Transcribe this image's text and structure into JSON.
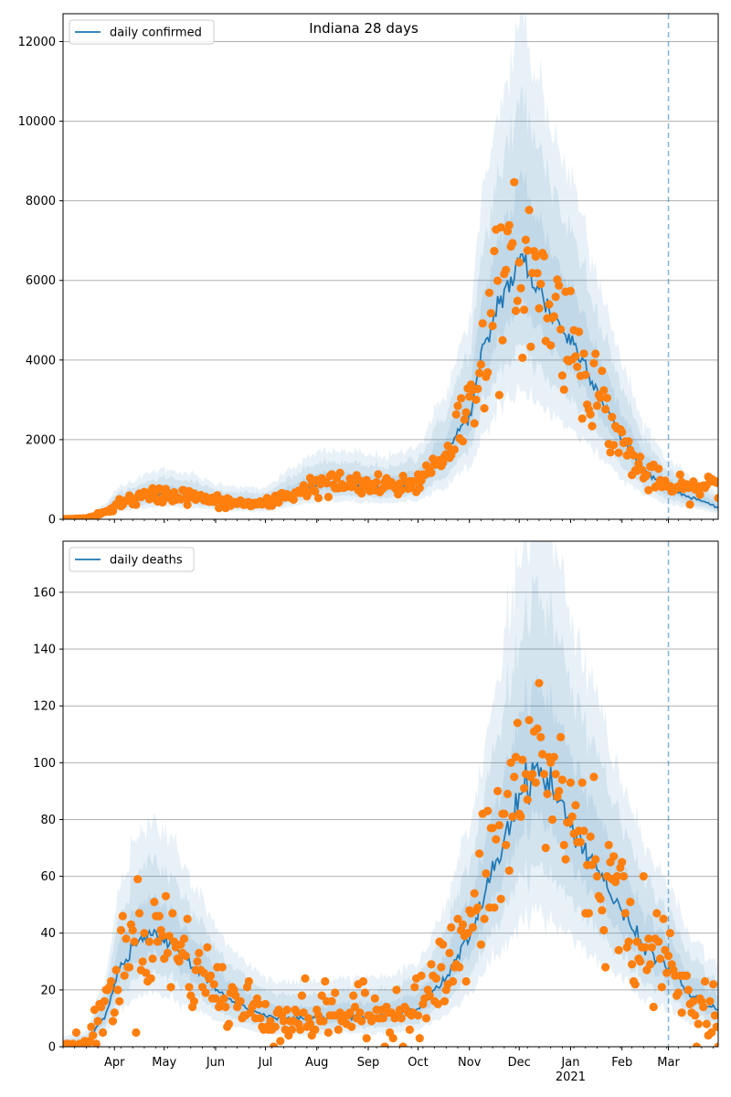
{
  "figure": {
    "title": "Indiana 28 days"
  },
  "colors": {
    "line": "#1f77b4",
    "points": "#ff7f0e",
    "band": "#1f77b4",
    "grid": "#b0b0b0",
    "vline": "#1f77b4"
  },
  "chart_data": [
    {
      "type": "line",
      "title": "Indiana 28 days",
      "series_name": "daily confirmed",
      "legend": "top-left",
      "grid": true,
      "x_range": [
        "2020-03-01",
        "2021-03-31"
      ],
      "ylim": [
        0,
        12700
      ],
      "y_ticks": [
        0,
        2000,
        4000,
        6000,
        8000,
        10000,
        12000
      ],
      "forecast_start": "2021-03-01",
      "median_keypoints": [
        [
          "2020-03-01",
          0
        ],
        [
          "2020-03-15",
          20
        ],
        [
          "2020-03-25",
          150
        ],
        [
          "2020-04-05",
          420
        ],
        [
          "2020-04-20",
          560
        ],
        [
          "2020-05-01",
          640
        ],
        [
          "2020-05-15",
          580
        ],
        [
          "2020-06-01",
          450
        ],
        [
          "2020-06-15",
          400
        ],
        [
          "2020-07-01",
          380
        ],
        [
          "2020-07-15",
          620
        ],
        [
          "2020-08-01",
          860
        ],
        [
          "2020-08-15",
          880
        ],
        [
          "2020-09-01",
          820
        ],
        [
          "2020-09-15",
          800
        ],
        [
          "2020-10-01",
          950
        ],
        [
          "2020-10-15",
          1500
        ],
        [
          "2020-11-01",
          2600
        ],
        [
          "2020-11-10",
          4300
        ],
        [
          "2020-11-20",
          5600
        ],
        [
          "2020-11-28",
          6100
        ],
        [
          "2020-12-03",
          6550
        ],
        [
          "2020-12-10",
          6000
        ],
        [
          "2020-12-20",
          5200
        ],
        [
          "2021-01-01",
          4500
        ],
        [
          "2021-01-10",
          3900
        ],
        [
          "2021-01-20",
          3000
        ],
        [
          "2021-02-01",
          2000
        ],
        [
          "2021-02-15",
          1200
        ],
        [
          "2021-03-01",
          750
        ],
        [
          "2021-03-15",
          550
        ],
        [
          "2021-03-31",
          300
        ]
      ],
      "observed_keypoints": [
        [
          "2020-03-01",
          0
        ],
        [
          "2020-03-15",
          20
        ],
        [
          "2020-03-25",
          150
        ],
        [
          "2020-04-05",
          420
        ],
        [
          "2020-04-20",
          560
        ],
        [
          "2020-05-01",
          640
        ],
        [
          "2020-05-15",
          580
        ],
        [
          "2020-06-01",
          450
        ],
        [
          "2020-06-15",
          400
        ],
        [
          "2020-07-01",
          380
        ],
        [
          "2020-07-15",
          620
        ],
        [
          "2020-08-01",
          860
        ],
        [
          "2020-08-15",
          880
        ],
        [
          "2020-09-01",
          820
        ],
        [
          "2020-09-15",
          800
        ],
        [
          "2020-10-01",
          950
        ],
        [
          "2020-10-15",
          1550
        ],
        [
          "2020-11-01",
          2800
        ],
        [
          "2020-11-10",
          4500
        ],
        [
          "2020-11-20",
          5700
        ],
        [
          "2020-11-28",
          6200
        ],
        [
          "2020-12-03",
          6500
        ],
        [
          "2020-12-10",
          6100
        ],
        [
          "2020-12-20",
          5300
        ],
        [
          "2021-01-01",
          4600
        ],
        [
          "2021-01-10",
          3800
        ],
        [
          "2021-01-20",
          2900
        ],
        [
          "2021-02-01",
          1900
        ],
        [
          "2021-02-15",
          1100
        ],
        [
          "2021-03-01",
          800
        ],
        [
          "2021-03-15",
          750
        ],
        [
          "2021-03-31",
          900
        ]
      ],
      "band_fractions": {
        "outer": 0.9,
        "mid": 0.6,
        "inner": 0.3
      }
    },
    {
      "type": "line",
      "series_name": "daily deaths",
      "legend": "top-left",
      "grid": true,
      "x_range": [
        "2020-03-01",
        "2021-03-31"
      ],
      "ylim": [
        0,
        178
      ],
      "y_ticks": [
        0,
        20,
        40,
        60,
        80,
        100,
        120,
        140,
        160
      ],
      "forecast_start": "2021-03-01",
      "median_keypoints": [
        [
          "2020-03-01",
          0
        ],
        [
          "2020-03-15",
          1
        ],
        [
          "2020-03-25",
          10
        ],
        [
          "2020-04-05",
          28
        ],
        [
          "2020-04-15",
          37
        ],
        [
          "2020-04-25",
          39
        ],
        [
          "2020-05-05",
          36
        ],
        [
          "2020-05-20",
          28
        ],
        [
          "2020-06-01",
          20
        ],
        [
          "2020-06-15",
          15
        ],
        [
          "2020-07-01",
          11
        ],
        [
          "2020-07-15",
          10
        ],
        [
          "2020-08-01",
          10
        ],
        [
          "2020-08-15",
          11
        ],
        [
          "2020-09-01",
          11
        ],
        [
          "2020-09-15",
          11
        ],
        [
          "2020-10-01",
          14
        ],
        [
          "2020-10-15",
          22
        ],
        [
          "2020-11-01",
          38
        ],
        [
          "2020-11-15",
          62
        ],
        [
          "2020-12-01",
          88
        ],
        [
          "2020-12-10",
          98
        ],
        [
          "2020-12-20",
          92
        ],
        [
          "2021-01-01",
          78
        ],
        [
          "2021-01-15",
          65
        ],
        [
          "2021-02-01",
          47
        ],
        [
          "2021-02-15",
          35
        ],
        [
          "2021-03-01",
          28
        ],
        [
          "2021-03-15",
          18
        ],
        [
          "2021-03-31",
          13
        ]
      ],
      "observed_keypoints": [
        [
          "2020-03-01",
          0
        ],
        [
          "2020-03-15",
          1
        ],
        [
          "2020-03-25",
          12
        ],
        [
          "2020-04-05",
          30
        ],
        [
          "2020-04-15",
          38
        ],
        [
          "2020-04-25",
          40
        ],
        [
          "2020-05-05",
          37
        ],
        [
          "2020-05-20",
          28
        ],
        [
          "2020-06-01",
          20
        ],
        [
          "2020-06-15",
          15
        ],
        [
          "2020-07-01",
          11
        ],
        [
          "2020-07-15",
          10
        ],
        [
          "2020-08-01",
          11
        ],
        [
          "2020-08-15",
          12
        ],
        [
          "2020-09-01",
          11
        ],
        [
          "2020-09-15",
          12
        ],
        [
          "2020-10-01",
          15
        ],
        [
          "2020-10-15",
          24
        ],
        [
          "2020-11-01",
          40
        ],
        [
          "2020-11-15",
          66
        ],
        [
          "2020-12-01",
          92
        ],
        [
          "2020-12-10",
          102
        ],
        [
          "2020-12-20",
          95
        ],
        [
          "2021-01-01",
          80
        ],
        [
          "2021-01-15",
          66
        ],
        [
          "2021-02-01",
          48
        ],
        [
          "2021-02-15",
          35
        ],
        [
          "2021-03-01",
          28
        ],
        [
          "2021-03-15",
          16
        ],
        [
          "2021-03-31",
          12
        ]
      ],
      "band_fractions": {
        "outer": 0.9,
        "mid": 0.6,
        "inner": 0.3
      }
    }
  ],
  "x_tick_labels": [
    {
      "date": "2020-04-01",
      "label": "Apr"
    },
    {
      "date": "2020-05-01",
      "label": "May"
    },
    {
      "date": "2020-06-01",
      "label": "Jun"
    },
    {
      "date": "2020-07-01",
      "label": "Jul"
    },
    {
      "date": "2020-08-01",
      "label": "Aug"
    },
    {
      "date": "2020-09-01",
      "label": "Sep"
    },
    {
      "date": "2020-10-01",
      "label": "Oct"
    },
    {
      "date": "2020-11-01",
      "label": "Nov"
    },
    {
      "date": "2020-12-01",
      "label": "Dec"
    },
    {
      "date": "2021-01-01",
      "label": "Jan"
    },
    {
      "date": "2021-02-01",
      "label": "Feb"
    },
    {
      "date": "2021-03-01",
      "label": "Mar"
    }
  ],
  "x_year_label": {
    "date": "2021-01-01",
    "label": "2021"
  }
}
